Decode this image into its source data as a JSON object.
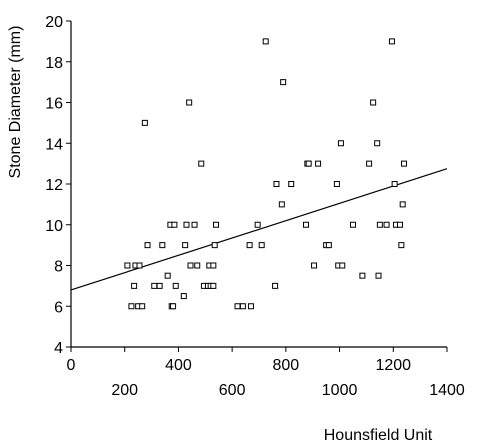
{
  "chart_data": {
    "type": "scatter",
    "title": "",
    "xlabel": "Hounsfield Unit",
    "ylabel": "Stone Diameter (mm)",
    "xlim": [
      0,
      1400
    ],
    "ylim": [
      4,
      20
    ],
    "x_ticks_upper": [
      "0",
      "400",
      "800",
      "1200"
    ],
    "x_ticks_lower": [
      "200",
      "600",
      "1000",
      "1400"
    ],
    "y_ticks": [
      "4",
      "6",
      "8",
      "10",
      "12",
      "14",
      "16",
      "18",
      "20"
    ],
    "grid": false,
    "marker": "open-square",
    "trendline": {
      "type": "linear",
      "intercept": 6.8,
      "slope": 0.00425
    },
    "points": [
      [
        210,
        8
      ],
      [
        225,
        6
      ],
      [
        235,
        7
      ],
      [
        240,
        8
      ],
      [
        250,
        6
      ],
      [
        255,
        8
      ],
      [
        265,
        6
      ],
      [
        275,
        15
      ],
      [
        285,
        9
      ],
      [
        310,
        7
      ],
      [
        330,
        7
      ],
      [
        340,
        9
      ],
      [
        360,
        7.5
      ],
      [
        370,
        10
      ],
      [
        375,
        6
      ],
      [
        380,
        6
      ],
      [
        385,
        10
      ],
      [
        390,
        7
      ],
      [
        420,
        6.5
      ],
      [
        425,
        9
      ],
      [
        430,
        10
      ],
      [
        440,
        16
      ],
      [
        445,
        8
      ],
      [
        460,
        10
      ],
      [
        470,
        8
      ],
      [
        485,
        13
      ],
      [
        495,
        7
      ],
      [
        510,
        7
      ],
      [
        515,
        8
      ],
      [
        520,
        7
      ],
      [
        530,
        7
      ],
      [
        530,
        8
      ],
      [
        535,
        9
      ],
      [
        540,
        10
      ],
      [
        620,
        6
      ],
      [
        640,
        6
      ],
      [
        665,
        9
      ],
      [
        670,
        6
      ],
      [
        695,
        10
      ],
      [
        710,
        9
      ],
      [
        725,
        19
      ],
      [
        760,
        7
      ],
      [
        765,
        12
      ],
      [
        785,
        11
      ],
      [
        790,
        17
      ],
      [
        820,
        12
      ],
      [
        875,
        10
      ],
      [
        880,
        13
      ],
      [
        885,
        13
      ],
      [
        905,
        8
      ],
      [
        920,
        13
      ],
      [
        950,
        9
      ],
      [
        960,
        9
      ],
      [
        990,
        12
      ],
      [
        995,
        8
      ],
      [
        1005,
        14
      ],
      [
        1010,
        8
      ],
      [
        1050,
        10
      ],
      [
        1085,
        7.5
      ],
      [
        1110,
        13
      ],
      [
        1125,
        16
      ],
      [
        1140,
        14
      ],
      [
        1145,
        7.5
      ],
      [
        1150,
        10
      ],
      [
        1175,
        10
      ],
      [
        1195,
        19
      ],
      [
        1205,
        12
      ],
      [
        1210,
        10
      ],
      [
        1225,
        10
      ],
      [
        1230,
        9
      ],
      [
        1235,
        11
      ],
      [
        1240,
        13
      ]
    ]
  }
}
